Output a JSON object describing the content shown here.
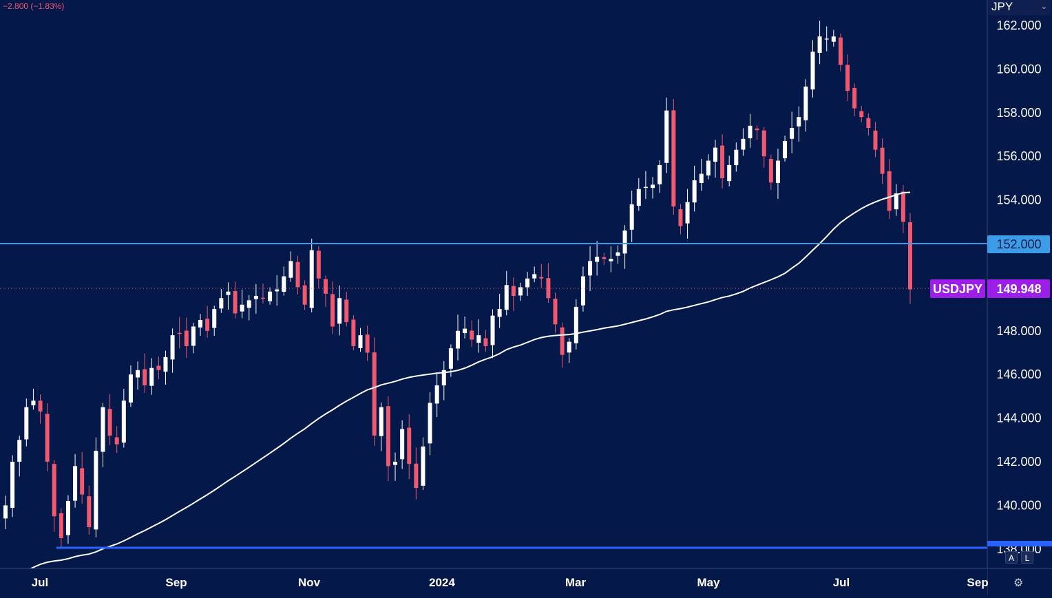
{
  "header": {
    "change_text": "−2.800 (−1.83%)",
    "currency": "JPY"
  },
  "price_axis": {
    "labels": [
      "162.000",
      "160.000",
      "158.000",
      "156.000",
      "154.000",
      "152.000",
      "148.000",
      "146.000",
      "144.000",
      "142.000",
      "140.000",
      "138.000"
    ]
  },
  "time_axis": {
    "labels": [
      "Jul",
      "Sep",
      "Nov",
      "2024",
      "Mar",
      "May",
      "Jul",
      "Sep"
    ]
  },
  "markers": {
    "resistance_label": "152.000",
    "symbol": "USDJPY",
    "last_price": "149.948"
  },
  "buttons": {
    "auto": "A",
    "log": "L",
    "settings_icon": "gear-icon"
  },
  "colors": {
    "background": "#04184a",
    "up_candle": "#ffffff",
    "down_candle": "#f0596e",
    "moving_average": "#ffffff",
    "resistance_line": "#3d9ce8",
    "support_line": "#2962ff",
    "symbol_badge": "#9c1ee8"
  },
  "chart_data": {
    "type": "candlestick",
    "symbol": "USDJPY",
    "ylim": [
      137.0,
      163.2
    ],
    "x_ticks": [
      "Jul",
      "Sep",
      "Nov",
      "2024",
      "Mar",
      "May",
      "Jul",
      "Sep"
    ],
    "horizontal_lines": [
      152.0,
      138.0
    ],
    "last_price": 149.948,
    "closes": [
      140.0,
      142.0,
      143.0,
      144.5,
      144.8,
      144.3,
      142.0,
      139.5,
      138.5,
      140.2,
      141.8,
      140.5,
      139.0,
      142.5,
      144.5,
      143.2,
      142.8,
      144.8,
      146.0,
      146.2,
      145.5,
      146.3,
      146.2,
      146.8,
      147.8,
      147.9,
      147.3,
      148.2,
      148.5,
      148.0,
      149.0,
      149.5,
      149.8,
      148.8,
      149.2,
      149.4,
      149.6,
      149.5,
      149.8,
      149.9,
      150.5,
      151.2,
      150.0,
      149.2,
      151.7,
      150.4,
      149.7,
      148.2,
      149.5,
      148.4,
      147.3,
      147.8,
      147.0,
      143.2,
      144.5,
      141.8,
      142.0,
      143.5,
      141.9,
      140.8,
      142.7,
      144.7,
      145.5,
      146.2,
      147.2,
      148.0,
      148.1,
      147.6,
      147.8,
      147.3,
      148.7,
      149.0,
      150.1,
      149.6,
      150.0,
      150.4,
      150.6,
      150.4,
      149.5,
      148.3,
      146.9,
      147.5,
      149.1,
      150.5,
      151.2,
      151.4,
      151.3,
      151.3,
      151.6,
      152.6,
      153.8,
      154.5,
      154.6,
      154.7,
      155.6,
      158.1,
      153.7,
      152.8,
      153.9,
      154.9,
      155.2,
      155.8,
      156.4,
      155.0,
      155.6,
      156.3,
      156.8,
      157.4,
      157.2,
      156.0,
      154.8,
      155.8,
      156.7,
      157.3,
      157.8,
      159.2,
      160.8,
      161.5,
      161.4,
      161.5,
      160.2,
      159.0,
      158.2,
      157.8,
      157.3,
      156.3,
      155.2,
      153.5,
      154.3,
      153.0,
      149.9
    ]
  }
}
